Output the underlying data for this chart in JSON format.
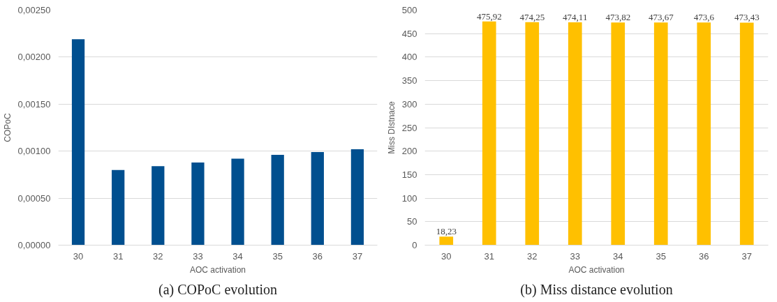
{
  "chart_data": [
    {
      "type": "bar",
      "xlabel": "AOC activation",
      "ylabel": "COPoC",
      "categories": [
        "30",
        "31",
        "32",
        "33",
        "34",
        "35",
        "36",
        "37"
      ],
      "values": [
        0.00219,
        0.0008,
        0.00084,
        0.00088,
        0.00092,
        0.00096,
        0.00099,
        0.00102
      ],
      "color": "#004f8f",
      "ylim": [
        0,
        0.0025
      ],
      "yticks": [
        {
          "value": 0,
          "label": "0,00000"
        },
        {
          "value": 0.0005,
          "label": "0,00050"
        },
        {
          "value": 0.001,
          "label": "0,00100"
        },
        {
          "value": 0.0015,
          "label": "0,00150"
        },
        {
          "value": 0.002,
          "label": "0,00200"
        },
        {
          "value": 0.0025,
          "label": "0,00250"
        }
      ],
      "grid": "y",
      "annotations": [
        "(a) COPoC evolution"
      ]
    },
    {
      "type": "bar",
      "xlabel": "AOC activation",
      "ylabel": "Miss DIstnace",
      "categories": [
        "30",
        "31",
        "32",
        "33",
        "34",
        "35",
        "36",
        "37"
      ],
      "values": [
        18.23,
        475.92,
        474.25,
        474.11,
        473.82,
        473.67,
        473.6,
        473.43
      ],
      "color": "#ffc000",
      "value_labels": [
        "18,23",
        "475,92",
        "474,25",
        "474,11",
        "473,82",
        "473,67",
        "473,6",
        "473,43"
      ],
      "ylim": [
        0,
        500
      ],
      "yticks": [
        0,
        50,
        100,
        150,
        200,
        250,
        300,
        350,
        400,
        450,
        500
      ],
      "grid": "y",
      "annotations": [
        "(b) Miss distance evolution"
      ]
    }
  ]
}
